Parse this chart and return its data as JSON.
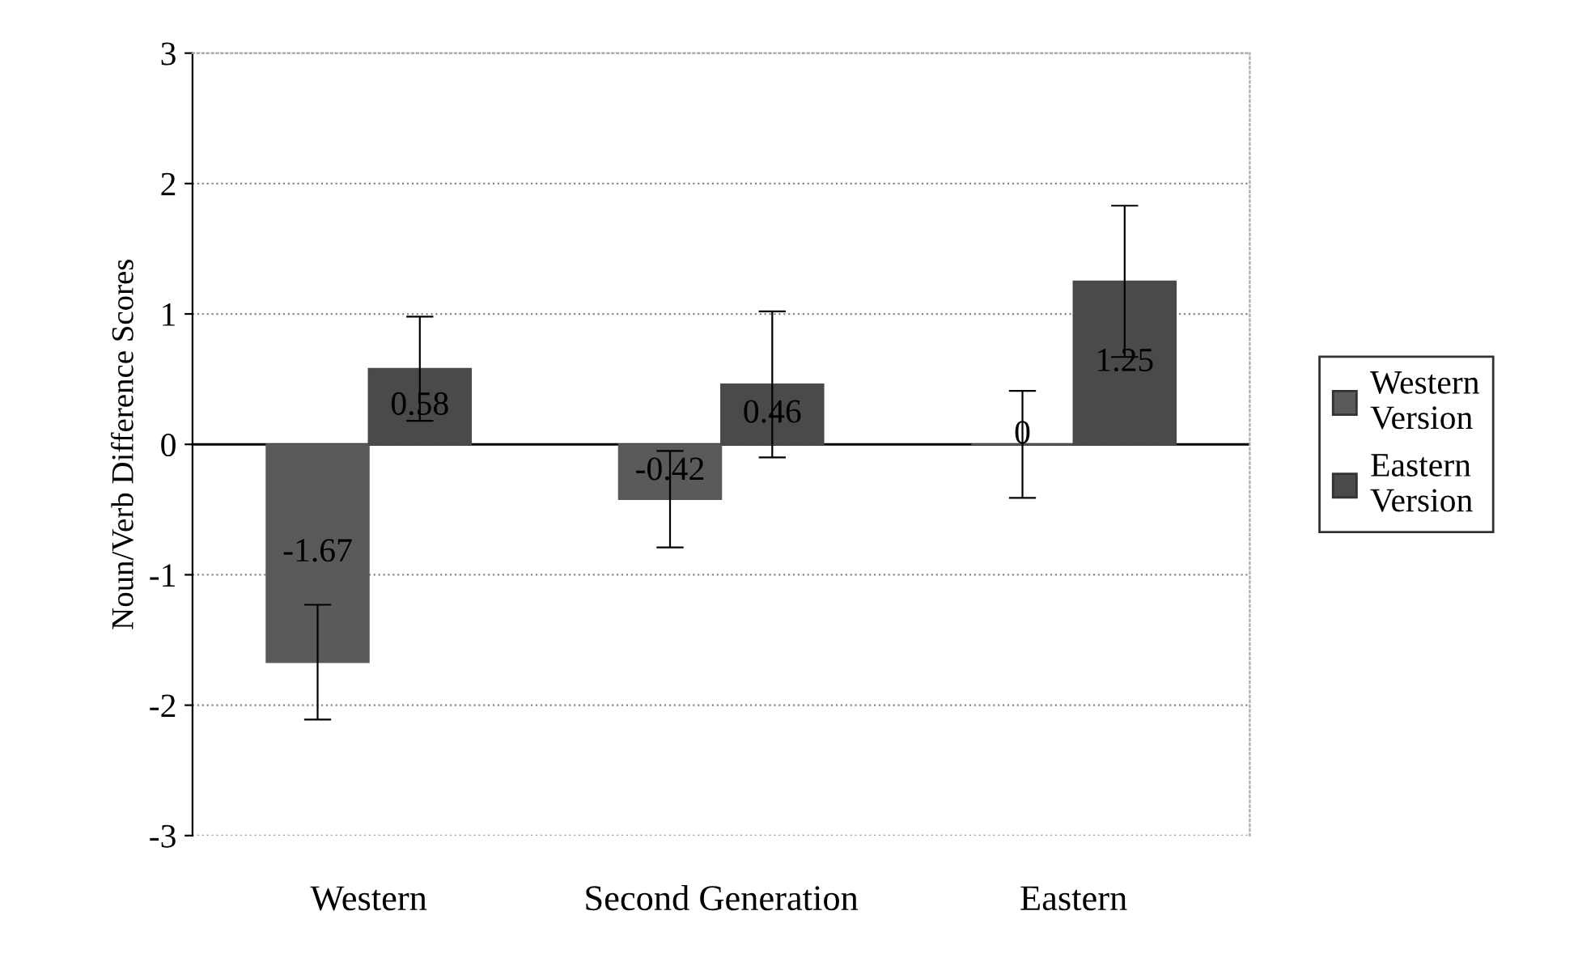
{
  "chart_data": {
    "type": "bar",
    "ylabel": "Noun/Verb Difference Scores",
    "categories": [
      "Western",
      "Second Generation",
      "Eastern"
    ],
    "series": [
      {
        "name": "Western Version",
        "color": "#5a5a5a",
        "values": [
          -1.67,
          -0.42,
          0
        ],
        "errors": [
          0.44,
          0.37,
          0.41
        ]
      },
      {
        "name": "Eastern Version",
        "color": "#4a4a4a",
        "values": [
          0.58,
          0.46,
          1.25
        ],
        "errors": [
          0.4,
          0.56,
          0.58
        ]
      }
    ],
    "ylim": [
      -3,
      3
    ],
    "yticks": [
      -3,
      -2,
      -1,
      0,
      1,
      2,
      3
    ],
    "grid": "y",
    "legend": "right",
    "data_labels": true
  }
}
